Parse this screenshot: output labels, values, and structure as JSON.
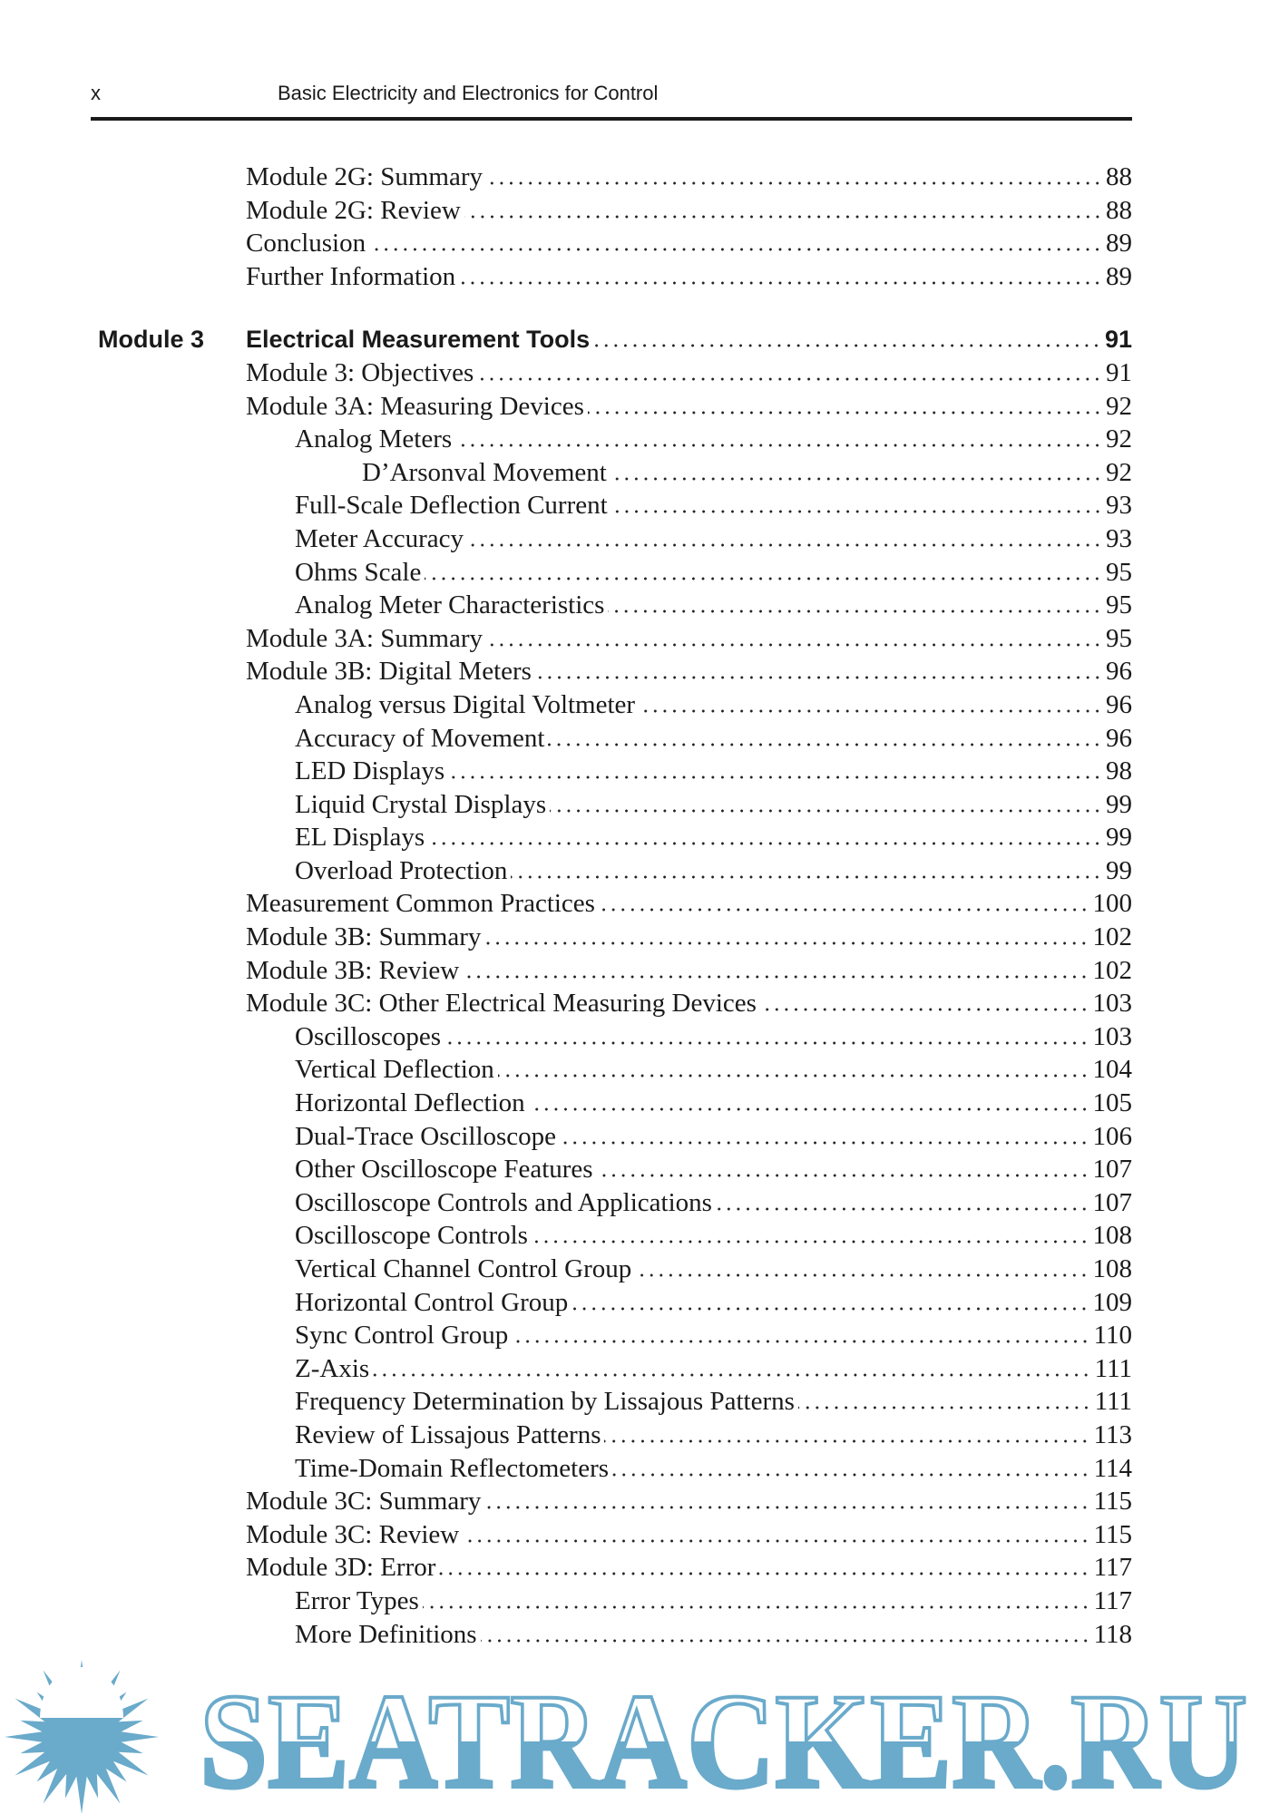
{
  "header": {
    "page_number": "x",
    "book_title": "Basic Electricity and Electronics for Control"
  },
  "toc": [
    {
      "level": 1,
      "title": "Module 2G: Summary",
      "page": "88"
    },
    {
      "level": 1,
      "title": "Module 2G: Review",
      "page": "88"
    },
    {
      "level": 1,
      "title": "Conclusion",
      "page": "89"
    },
    {
      "level": 1,
      "title": "Further Information",
      "page": "89"
    },
    {
      "level": 0,
      "module": "Module 3",
      "title": "Electrical Measurement Tools",
      "page": "91"
    },
    {
      "level": 1,
      "title": "Module 3: Objectives",
      "page": "91"
    },
    {
      "level": 1,
      "title": "Module 3A: Measuring Devices",
      "page": "92"
    },
    {
      "level": 2,
      "title": "Analog Meters",
      "page": "92"
    },
    {
      "level": 3,
      "title": "D’Arsonval Movement",
      "page": "92"
    },
    {
      "level": 2,
      "title": "Full-Scale Deflection Current",
      "page": "93"
    },
    {
      "level": 2,
      "title": "Meter Accuracy",
      "page": "93"
    },
    {
      "level": 2,
      "title": "Ohms Scale",
      "page": "95"
    },
    {
      "level": 2,
      "title": "Analog Meter Characteristics",
      "page": "95"
    },
    {
      "level": 1,
      "title": "Module 3A: Summary",
      "page": "95"
    },
    {
      "level": 1,
      "title": "Module 3B: Digital Meters",
      "page": "96"
    },
    {
      "level": 2,
      "title": "Analog versus Digital Voltmeter",
      "page": "96"
    },
    {
      "level": 2,
      "title": "Accuracy of Movement",
      "page": "96"
    },
    {
      "level": 2,
      "title": "LED Displays",
      "page": "98"
    },
    {
      "level": 2,
      "title": "Liquid Crystal Displays",
      "page": "99"
    },
    {
      "level": 2,
      "title": "EL Displays",
      "page": "99"
    },
    {
      "level": 2,
      "title": "Overload Protection",
      "page": "99"
    },
    {
      "level": 1,
      "title": "Measurement Common Practices",
      "page": "100"
    },
    {
      "level": 1,
      "title": "Module 3B: Summary",
      "page": "102"
    },
    {
      "level": 1,
      "title": "Module 3B: Review",
      "page": "102"
    },
    {
      "level": 1,
      "title": "Module 3C: Other Electrical Measuring Devices",
      "page": "103"
    },
    {
      "level": 2,
      "title": "Oscilloscopes",
      "page": "103"
    },
    {
      "level": 2,
      "title": "Vertical Deflection",
      "page": "104"
    },
    {
      "level": 2,
      "title": "Horizontal Deflection",
      "page": "105"
    },
    {
      "level": 2,
      "title": "Dual-Trace Oscilloscope",
      "page": "106"
    },
    {
      "level": 2,
      "title": "Other Oscilloscope Features",
      "page": "107"
    },
    {
      "level": 2,
      "title": "Oscilloscope Controls and Applications",
      "page": "107"
    },
    {
      "level": 2,
      "title": "Oscilloscope Controls",
      "page": "108"
    },
    {
      "level": 2,
      "title": "Vertical Channel Control Group",
      "page": "108"
    },
    {
      "level": 2,
      "title": "Horizontal Control Group",
      "page": "109"
    },
    {
      "level": 2,
      "title": "Sync Control Group",
      "page": "110"
    },
    {
      "level": 2,
      "title": "Z-Axis",
      "page": "111"
    },
    {
      "level": 2,
      "title": "Frequency Determination by Lissajous Patterns",
      "page": "111"
    },
    {
      "level": 2,
      "title": "Review of Lissajous Patterns",
      "page": "113"
    },
    {
      "level": 2,
      "title": "Time-Domain Reflectometers",
      "page": "114"
    },
    {
      "level": 1,
      "title": "Module 3C: Summary",
      "page": "115"
    },
    {
      "level": 1,
      "title": "Module 3C: Review",
      "page": "115"
    },
    {
      "level": 1,
      "title": "Module 3D: Error",
      "page": "117"
    },
    {
      "level": 2,
      "title": "Error Types",
      "page": "117"
    },
    {
      "level": 2,
      "title": "More Definitions",
      "page": "118"
    }
  ],
  "watermark": {
    "text": "SEATRACKER.RU",
    "color": "#6aaacb"
  }
}
